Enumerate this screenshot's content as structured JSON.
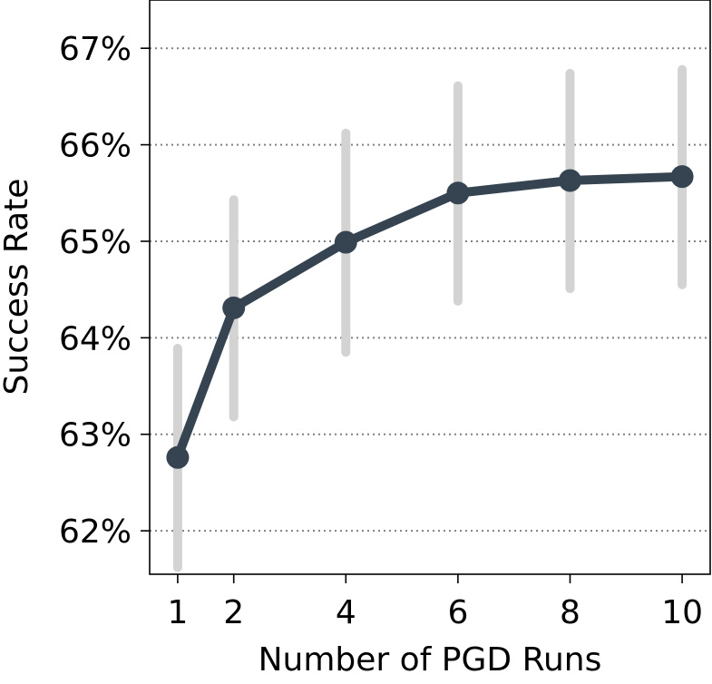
{
  "chart_data": {
    "type": "line",
    "xlabel": "Number of PGD Runs",
    "ylabel": "Success Rate",
    "x": [
      1,
      2,
      4,
      6,
      8,
      10
    ],
    "xticks": [
      "1",
      "2",
      "4",
      "6",
      "8",
      "10"
    ],
    "xlim": [
      0.5,
      10.5
    ],
    "ylim": [
      61.55,
      67.5
    ],
    "yticks": [
      62,
      63,
      64,
      65,
      66,
      67
    ],
    "yticklabels": [
      "62%",
      "63%",
      "64%",
      "65%",
      "66%",
      "67%"
    ],
    "grid": "horizontal dotted",
    "series": [
      {
        "values": [
          62.76,
          64.31,
          64.99,
          65.5,
          65.63,
          65.67
        ],
        "error_low": [
          61.62,
          63.18,
          63.85,
          64.38,
          64.51,
          64.55
        ],
        "error_high": [
          63.89,
          65.43,
          66.12,
          66.61,
          66.74,
          66.78
        ]
      }
    ],
    "colors": {
      "line": "#364452",
      "error_bar": "#d3d3d3",
      "grid": "#808080",
      "axis": "#000000"
    }
  }
}
